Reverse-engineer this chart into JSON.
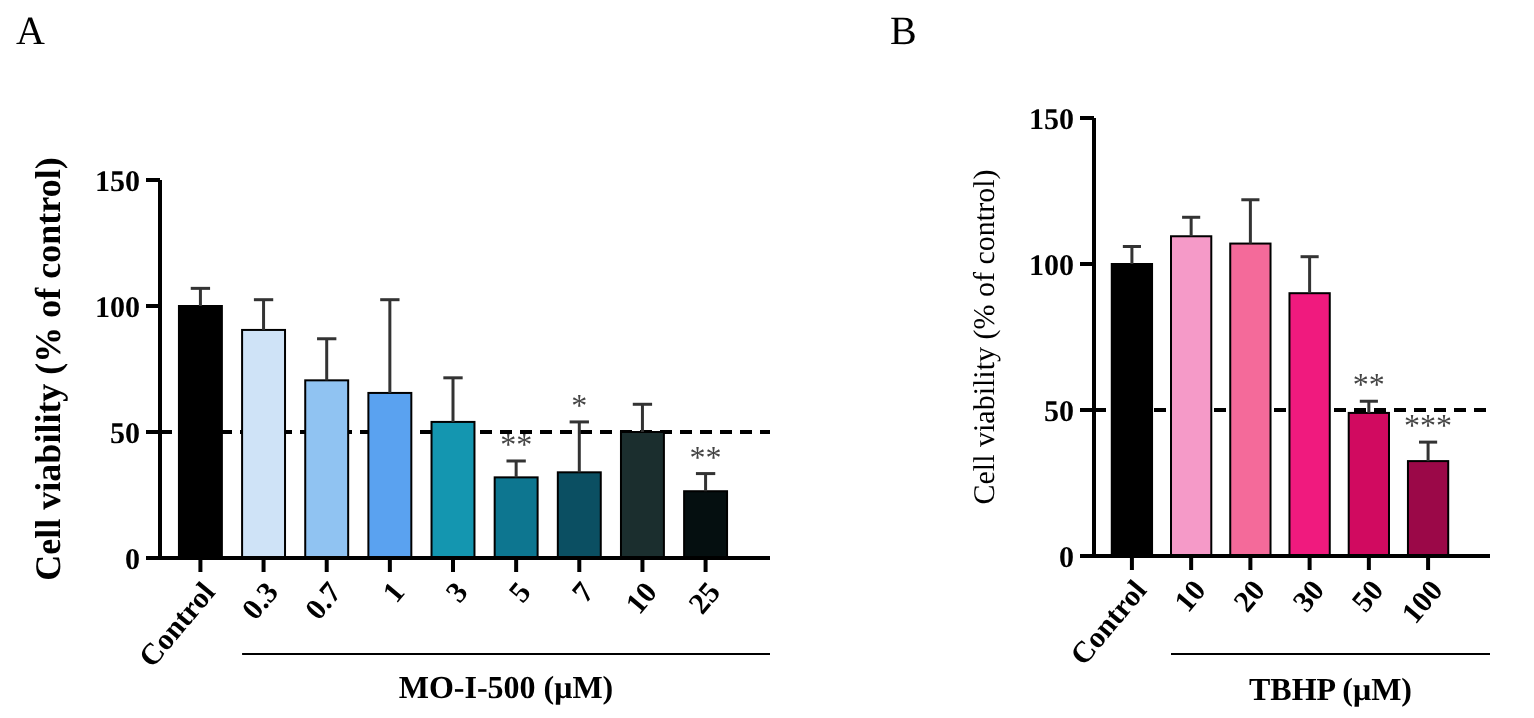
{
  "chart_data": [
    {
      "type": "bar",
      "title": "A",
      "xlabel": "MO-I-500 (μM)",
      "ylabel": "Cell viability (% of control)",
      "categories": [
        "Control",
        "0.3",
        "0.7",
        "1",
        "3",
        "5",
        "7",
        "10",
        "25"
      ],
      "values": [
        100,
        90.5,
        70.5,
        65.5,
        54,
        32,
        34,
        50,
        26.5
      ],
      "errors": [
        [
          100,
          107
        ],
        [
          90.5,
          102.5
        ],
        [
          70.5,
          87
        ],
        [
          65.5,
          102.5
        ],
        [
          54,
          71.5
        ],
        [
          32,
          38.5
        ],
        [
          34,
          54
        ],
        [
          50,
          61
        ],
        [
          26.5,
          33.5
        ]
      ],
      "colors": [
        "#000000",
        "#cfe3f7",
        "#90c3f2",
        "#5aa2f0",
        "#1496b0",
        "#0d7690",
        "#0b4f62",
        "#1b2e2e",
        "#050f10"
      ],
      "ylim": [
        0,
        150
      ],
      "yticks": [
        0,
        50,
        100,
        150
      ],
      "ref_lines": [
        {
          "axis": "y",
          "value": 50,
          "line_style": "dashed",
          "color": "#000000"
        }
      ],
      "annotations": [
        {
          "text": "**",
          "x": "5",
          "y": 32
        },
        {
          "text": "*",
          "x": "7",
          "y": 34
        },
        {
          "text": "**",
          "x": "25",
          "y": 26.5
        }
      ]
    },
    {
      "type": "bar",
      "title": "B",
      "xlabel": "TBHP (μM)",
      "ylabel": "Cell viability (% of control)",
      "categories": [
        "Control",
        "10",
        "20",
        "30",
        "50",
        "100"
      ],
      "values": [
        100,
        109.5,
        107,
        90,
        49,
        32.5
      ],
      "errors": [
        [
          100,
          106
        ],
        [
          109.5,
          116
        ],
        [
          107,
          122
        ],
        [
          90,
          102.5
        ],
        [
          49,
          53
        ],
        [
          32.5,
          39
        ]
      ],
      "colors": [
        "#000000",
        "#f59ac8",
        "#f46a9a",
        "#f01a7e",
        "#d10a60",
        "#9b0848"
      ],
      "ylim": [
        0,
        150
      ],
      "yticks": [
        0,
        50,
        100,
        150
      ],
      "ref_lines": [
        {
          "axis": "y",
          "value": 50,
          "line_style": "dashed",
          "color": "#000000"
        }
      ],
      "annotations": [
        {
          "text": "**",
          "x": "50",
          "y": 49
        },
        {
          "text": "***",
          "x": "100",
          "y": 32.5
        }
      ]
    }
  ]
}
